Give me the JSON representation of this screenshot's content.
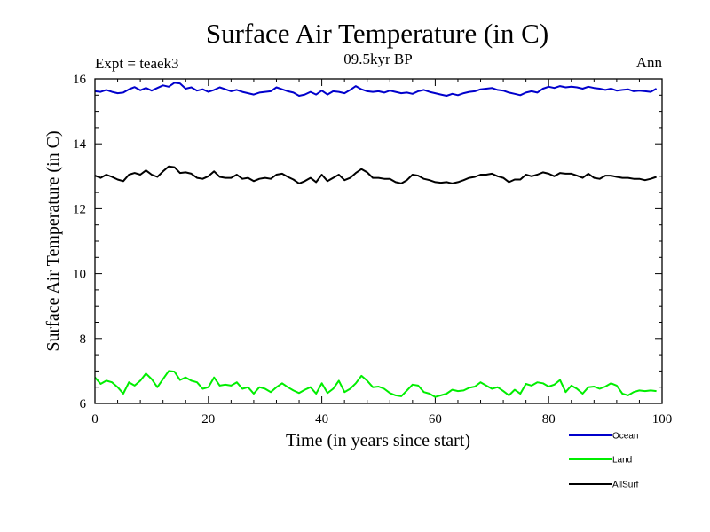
{
  "chart_data": {
    "type": "line",
    "title": "Surface Air Temperature (in C)",
    "subtitle": "09.5kyr BP",
    "experiment_label": "Expt = teaek3",
    "period_label": "Ann",
    "xlabel": "Time (in years since start)",
    "ylabel": "Surface Air Temperature (in C)",
    "xlim": [
      0,
      100
    ],
    "ylim": [
      6,
      16
    ],
    "xticks": [
      0,
      20,
      40,
      60,
      80,
      100
    ],
    "yticks": [
      6,
      8,
      10,
      12,
      14,
      16
    ],
    "grid": false,
    "legend_position": "bottom-right",
    "series": [
      {
        "name": "Ocean",
        "color": "#0000cc",
        "x": [
          0,
          1,
          2,
          3,
          4,
          5,
          6,
          7,
          8,
          9,
          10,
          11,
          12,
          13,
          14,
          15,
          16,
          17,
          18,
          19,
          20,
          21,
          22,
          23,
          24,
          25,
          26,
          27,
          28,
          29,
          30,
          31,
          32,
          33,
          34,
          35,
          36,
          37,
          38,
          39,
          40,
          41,
          42,
          43,
          44,
          45,
          46,
          47,
          48,
          49,
          50,
          51,
          52,
          53,
          54,
          55,
          56,
          57,
          58,
          59,
          60,
          61,
          62,
          63,
          64,
          65,
          66,
          67,
          68,
          69,
          70,
          71,
          72,
          73,
          74,
          75,
          76,
          77,
          78,
          79,
          80,
          81,
          82,
          83,
          84,
          85,
          86,
          87,
          88,
          89,
          90,
          91,
          92,
          93,
          94,
          95,
          96,
          97,
          98,
          99
        ],
        "values": [
          15.62,
          15.6,
          15.66,
          15.6,
          15.56,
          15.58,
          15.68,
          15.75,
          15.65,
          15.72,
          15.64,
          15.72,
          15.8,
          15.76,
          15.88,
          15.86,
          15.7,
          15.74,
          15.64,
          15.68,
          15.6,
          15.66,
          15.74,
          15.68,
          15.62,
          15.66,
          15.6,
          15.56,
          15.52,
          15.58,
          15.6,
          15.62,
          15.74,
          15.68,
          15.62,
          15.58,
          15.48,
          15.52,
          15.6,
          15.52,
          15.64,
          15.52,
          15.62,
          15.6,
          15.56,
          15.66,
          15.78,
          15.68,
          15.62,
          15.6,
          15.62,
          15.58,
          15.64,
          15.6,
          15.56,
          15.58,
          15.54,
          15.62,
          15.66,
          15.6,
          15.56,
          15.52,
          15.48,
          15.54,
          15.5,
          15.56,
          15.6,
          15.62,
          15.68,
          15.7,
          15.72,
          15.66,
          15.64,
          15.58,
          15.54,
          15.5,
          15.58,
          15.62,
          15.58,
          15.7,
          15.76,
          15.72,
          15.78,
          15.74,
          15.76,
          15.74,
          15.7,
          15.76,
          15.72,
          15.7,
          15.66,
          15.7,
          15.64,
          15.66,
          15.68,
          15.62,
          15.64,
          15.62,
          15.6,
          15.7
        ]
      },
      {
        "name": "Land",
        "color": "#00ee00",
        "x": [
          0,
          1,
          2,
          3,
          4,
          5,
          6,
          7,
          8,
          9,
          10,
          11,
          12,
          13,
          14,
          15,
          16,
          17,
          18,
          19,
          20,
          21,
          22,
          23,
          24,
          25,
          26,
          27,
          28,
          29,
          30,
          31,
          32,
          33,
          34,
          35,
          36,
          37,
          38,
          39,
          40,
          41,
          42,
          43,
          44,
          45,
          46,
          47,
          48,
          49,
          50,
          51,
          52,
          53,
          54,
          55,
          56,
          57,
          58,
          59,
          60,
          61,
          62,
          63,
          64,
          65,
          66,
          67,
          68,
          69,
          70,
          71,
          72,
          73,
          74,
          75,
          76,
          77,
          78,
          79,
          80,
          81,
          82,
          83,
          84,
          85,
          86,
          87,
          88,
          89,
          90,
          91,
          92,
          93,
          94,
          95,
          96,
          97,
          98,
          99
        ],
        "values": [
          6.8,
          6.6,
          6.7,
          6.65,
          6.5,
          6.3,
          6.65,
          6.55,
          6.7,
          6.92,
          6.75,
          6.5,
          6.75,
          7.0,
          6.98,
          6.72,
          6.8,
          6.7,
          6.65,
          6.45,
          6.5,
          6.8,
          6.55,
          6.58,
          6.55,
          6.65,
          6.45,
          6.5,
          6.3,
          6.5,
          6.45,
          6.35,
          6.5,
          6.62,
          6.5,
          6.4,
          6.32,
          6.42,
          6.5,
          6.3,
          6.62,
          6.32,
          6.45,
          6.7,
          6.35,
          6.45,
          6.62,
          6.85,
          6.7,
          6.5,
          6.52,
          6.45,
          6.32,
          6.25,
          6.22,
          6.4,
          6.58,
          6.55,
          6.35,
          6.3,
          6.2,
          6.25,
          6.3,
          6.42,
          6.38,
          6.4,
          6.48,
          6.52,
          6.65,
          6.55,
          6.45,
          6.5,
          6.38,
          6.25,
          6.42,
          6.3,
          6.6,
          6.55,
          6.65,
          6.62,
          6.52,
          6.58,
          6.72,
          6.35,
          6.55,
          6.45,
          6.3,
          6.5,
          6.52,
          6.45,
          6.52,
          6.62,
          6.55,
          6.3,
          6.25,
          6.35,
          6.4,
          6.38,
          6.4,
          6.38
        ]
      },
      {
        "name": "AllSurf",
        "color": "#000000",
        "x": [
          0,
          1,
          2,
          3,
          4,
          5,
          6,
          7,
          8,
          9,
          10,
          11,
          12,
          13,
          14,
          15,
          16,
          17,
          18,
          19,
          20,
          21,
          22,
          23,
          24,
          25,
          26,
          27,
          28,
          29,
          30,
          31,
          32,
          33,
          34,
          35,
          36,
          37,
          38,
          39,
          40,
          41,
          42,
          43,
          44,
          45,
          46,
          47,
          48,
          49,
          50,
          51,
          52,
          53,
          54,
          55,
          56,
          57,
          58,
          59,
          60,
          61,
          62,
          63,
          64,
          65,
          66,
          67,
          68,
          69,
          70,
          71,
          72,
          73,
          74,
          75,
          76,
          77,
          78,
          79,
          80,
          81,
          82,
          83,
          84,
          85,
          86,
          87,
          88,
          89,
          90,
          91,
          92,
          93,
          94,
          95,
          96,
          97,
          98,
          99
        ],
        "values": [
          13.02,
          12.95,
          13.05,
          12.98,
          12.9,
          12.85,
          13.05,
          13.1,
          13.05,
          13.18,
          13.05,
          12.98,
          13.15,
          13.3,
          13.28,
          13.1,
          13.12,
          13.08,
          12.95,
          12.92,
          13.0,
          13.15,
          12.98,
          12.95,
          12.95,
          13.05,
          12.92,
          12.95,
          12.85,
          12.92,
          12.95,
          12.92,
          13.05,
          13.08,
          12.98,
          12.9,
          12.78,
          12.85,
          12.95,
          12.82,
          13.05,
          12.85,
          12.95,
          13.05,
          12.88,
          12.95,
          13.1,
          13.22,
          13.12,
          12.95,
          12.95,
          12.92,
          12.92,
          12.82,
          12.78,
          12.88,
          13.05,
          13.02,
          12.92,
          12.88,
          12.82,
          12.8,
          12.82,
          12.78,
          12.82,
          12.88,
          12.95,
          12.98,
          13.05,
          13.05,
          13.08,
          13.0,
          12.95,
          12.82,
          12.9,
          12.9,
          13.05,
          13.0,
          13.05,
          13.12,
          13.08,
          13.0,
          13.1,
          13.08,
          13.08,
          13.02,
          12.95,
          13.08,
          12.95,
          12.92,
          13.02,
          13.02,
          12.98,
          12.95,
          12.95,
          12.92,
          12.92,
          12.88,
          12.92,
          12.98
        ]
      }
    ]
  }
}
